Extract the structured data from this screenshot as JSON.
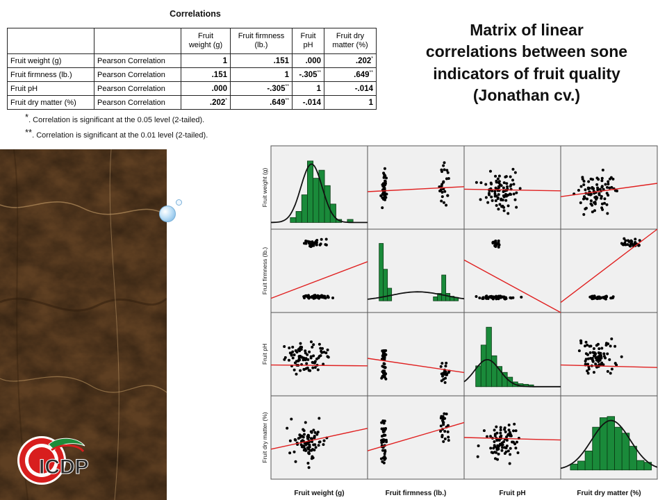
{
  "table": {
    "title": "Correlations",
    "headers": [
      [
        "Fruit",
        "weight (g)"
      ],
      [
        "Fruit firmness",
        "(lb.)"
      ],
      [
        "Fruit",
        "pH"
      ],
      [
        "Fruit dry",
        "matter (%)"
      ]
    ],
    "rows": [
      {
        "label": "Fruit weight (g)",
        "type": "Pearson Correlation",
        "cells": [
          {
            "v": "1",
            "s": ""
          },
          {
            "v": ".151",
            "s": ""
          },
          {
            "v": ".000",
            "s": ""
          },
          {
            "v": ".202",
            "s": "*"
          }
        ]
      },
      {
        "label": "Fruit firmness (lb.)",
        "type": "Pearson Correlation",
        "cells": [
          {
            "v": ".151",
            "s": ""
          },
          {
            "v": "1",
            "s": ""
          },
          {
            "v": "-.305",
            "s": "**"
          },
          {
            "v": ".649",
            "s": "**"
          }
        ]
      },
      {
        "label": "Fruit pH",
        "type": "Pearson Correlation",
        "cells": [
          {
            "v": ".000",
            "s": ""
          },
          {
            "v": "-.305",
            "s": "**"
          },
          {
            "v": "1",
            "s": ""
          },
          {
            "v": "-.014",
            "s": ""
          }
        ]
      },
      {
        "label": "Fruit dry matter (%)",
        "type": "Pearson Correlation",
        "cells": [
          {
            "v": ".202",
            "s": "*"
          },
          {
            "v": ".649",
            "s": "**"
          },
          {
            "v": "-.014",
            "s": ""
          },
          {
            "v": "1",
            "s": ""
          }
        ]
      }
    ],
    "footnotes": [
      {
        "mark": "*",
        "text": ". Correlation is significant at the 0.05 level (2-tailed)."
      },
      {
        "mark": "**",
        "text": ". Correlation is significant at the 0.01 level (2-tailed)."
      }
    ]
  },
  "slide_title_lines": [
    "Matrix of linear",
    "correlations between sone",
    "indicators of fruit quality",
    "(Jonathan cv.)"
  ],
  "logo": {
    "text": "ICDP"
  },
  "matrix": {
    "variables": [
      "Fruit weight (g)",
      "Fruit firmness (lb.)",
      "Fruit pH",
      "Fruit dry matter (%)"
    ],
    "colors": {
      "bar": "#1a8a3a",
      "fit": "#e02020",
      "point": "#000000",
      "panel": "#f0f0f0"
    }
  }
}
